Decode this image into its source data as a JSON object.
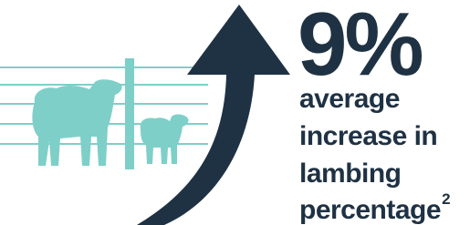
{
  "stat": "9%",
  "description": {
    "lines": [
      "average",
      "increase in",
      "lambing",
      "percentage"
    ],
    "footnote": "2"
  }
}
